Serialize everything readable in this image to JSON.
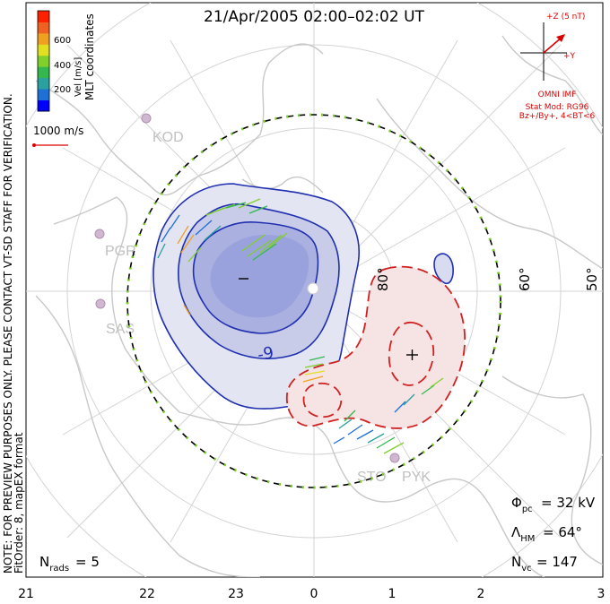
{
  "title": "21/Apr/2005 02:00–02:02 UT",
  "side_note": "NOTE: FOR PREVIEW PURPOSES ONLY. PLEASE CONTACT VT-SD STAFF FOR VERIFICATION.",
  "fit_order": "FitOrder: 8, mapEX format",
  "mlt_label": "MLT coordinates",
  "colorbar": {
    "label": "Vel [m/s]",
    "ticks": [
      "200",
      "400",
      "600"
    ],
    "colors": [
      "#0000ff",
      "#1e6fd6",
      "#2aa0a0",
      "#33b84e",
      "#7fd02a",
      "#e0e020",
      "#f0a020",
      "#f06020",
      "#ff2000"
    ]
  },
  "scale_vector_label": "1000 m/s",
  "imf": {
    "z_label": "+Z (5 nT)",
    "y_label": "+Y",
    "source": "OMNI IMF",
    "stat_mod": "Stat Mod: RG96",
    "condition": "Bz+/By+, 4<BT<6"
  },
  "radars": [
    "KOD",
    "PGR",
    "SAS",
    "STO",
    "PYK"
  ],
  "lat_labels": [
    "80°",
    "60°",
    "50°"
  ],
  "mlt_ticks": [
    "21",
    "22",
    "23",
    "0",
    "1",
    "2",
    "3"
  ],
  "contour_labels": [
    "-9",
    "−",
    "+"
  ],
  "stats": {
    "phi_pc": "= 32 kV",
    "lambda_hm": "= 64°",
    "n_vc": "= 147",
    "n_rads": "= 5"
  },
  "colors": {
    "negative_cell": "#1f2fb0",
    "positive_cell": "#d02020",
    "hm_boundary_dash": "#7fd02a",
    "map_gray": "#c8c8c8"
  }
}
